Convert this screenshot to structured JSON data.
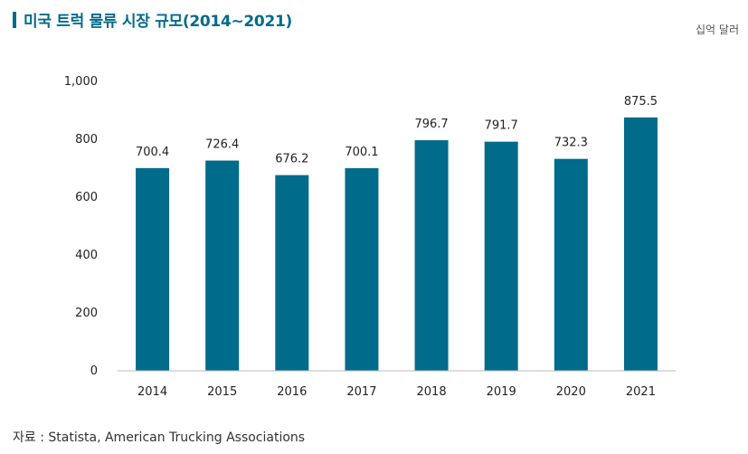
{
  "header": {
    "title": "미국 트럭 물류 시장 규모(2014~2021)",
    "unit": "십억 달러"
  },
  "footer": {
    "source": "자료 : Statista, American Trucking Associations"
  },
  "chart_data": {
    "type": "bar",
    "title": "미국 트럭 물류 시장 규모(2014~2021)",
    "xlabel": "",
    "ylabel": "",
    "unit": "십억 달러",
    "categories": [
      "2014",
      "2015",
      "2016",
      "2017",
      "2018",
      "2019",
      "2020",
      "2021"
    ],
    "values": [
      700.4,
      726.4,
      676.2,
      700.1,
      796.7,
      791.7,
      732.3,
      875.5
    ],
    "data_labels": [
      "700.4",
      "726.4",
      "676.2",
      "700.1",
      "796.7",
      "791.7",
      "732.3",
      "875.5"
    ],
    "ylim": [
      0,
      1000
    ],
    "yticks": [
      0,
      200,
      400,
      600,
      800,
      1000
    ],
    "ytick_labels": [
      "0",
      "200",
      "400",
      "600",
      "800",
      "1,000"
    ],
    "grid": false,
    "legend": "none",
    "bar_color": "#006b8a"
  }
}
